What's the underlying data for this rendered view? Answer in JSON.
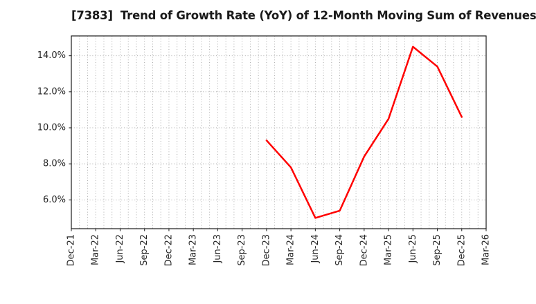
{
  "title": "[7383]  Trend of Growth Rate (YoY) of 12-Month Moving Sum of Revenues",
  "chart_data": {
    "type": "line",
    "title": "[7383]  Trend of Growth Rate (YoY) of 12-Month Moving Sum of Revenues",
    "xlabel": "",
    "ylabel": "",
    "x_tick_labels": [
      "Dec-21",
      "Mar-22",
      "Jun-22",
      "Sep-22",
      "Dec-22",
      "Mar-23",
      "Jun-23",
      "Sep-23",
      "Dec-23",
      "Mar-24",
      "Jun-24",
      "Sep-24",
      "Dec-24",
      "Mar-25",
      "Jun-25",
      "Sep-25",
      "Dec-25",
      "Mar-26"
    ],
    "y_tick_labels": [
      "6.0%",
      "8.0%",
      "10.0%",
      "12.0%",
      "14.0%"
    ],
    "y_tick_values": [
      6,
      8,
      10,
      12,
      14
    ],
    "ylim": [
      4.4,
      15.1
    ],
    "grid": {
      "horizontal": "major-dotted",
      "vertical": "monthly-dotted",
      "months_per_tick": 3,
      "color": "#a3a3a3"
    },
    "legend": "none",
    "series": [
      {
        "name": "Growth Rate (YoY) of 12-Month Moving Sum of Revenues",
        "color": "#ff0000",
        "line_width": 2.5,
        "points": [
          {
            "x": "Dec-23",
            "y": 9.3
          },
          {
            "x": "Mar-24",
            "y": 7.8
          },
          {
            "x": "Jun-24",
            "y": 5.0
          },
          {
            "x": "Sep-24",
            "y": 5.4
          },
          {
            "x": "Dec-24",
            "y": 8.4
          },
          {
            "x": "Mar-25",
            "y": 10.5
          },
          {
            "x": "Jun-25",
            "y": 14.5
          },
          {
            "x": "Sep-25",
            "y": 13.4
          },
          {
            "x": "Dec-25",
            "y": 10.6
          }
        ]
      }
    ],
    "colors": {
      "background": "#ffffff",
      "spine": "#1a1a1a",
      "tick_text": "#262626",
      "grid": "#a3a3a3",
      "line": "#ff0000"
    }
  }
}
